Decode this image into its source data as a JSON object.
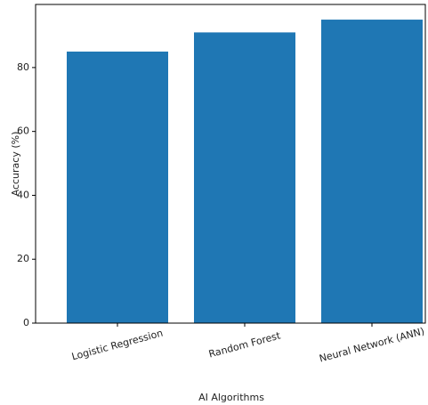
{
  "chart_data": {
    "type": "bar",
    "x_label": "AI Algorithms",
    "y_label": "Accuracy (%)",
    "categories": [
      "Logistic Regression",
      "Random Forest",
      "Neural Network (ANN)"
    ],
    "values": [
      85,
      91,
      95
    ],
    "color": "#1f77b4",
    "ylim": [
      0,
      99.75
    ],
    "yticks": [
      0,
      20,
      40,
      60,
      80
    ]
  }
}
